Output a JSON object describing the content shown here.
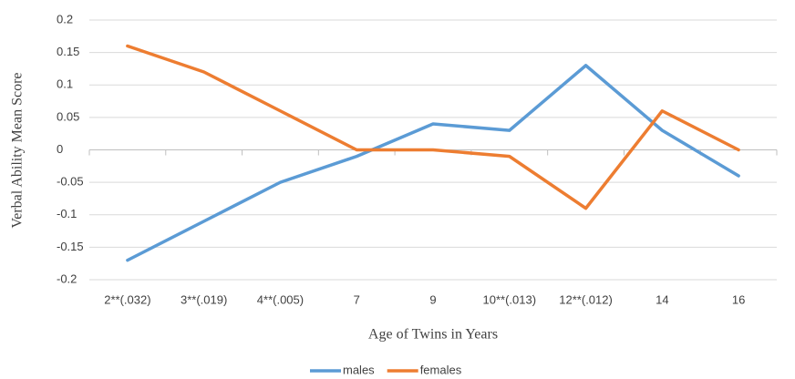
{
  "chart_data": {
    "type": "line",
    "x_label": "Age of Twins in Years",
    "y_label": "Verbal Ability Mean Score",
    "categories": [
      "2**(.032)",
      "3**(.019)",
      "4**(.005)",
      "7",
      "9",
      "10**(.013)",
      "12**(.012)",
      "14",
      "16"
    ],
    "series": [
      {
        "name": "males",
        "color": "#5b9bd5",
        "values": [
          -0.17,
          -0.11,
          -0.05,
          -0.01,
          0.04,
          0.03,
          0.13,
          0.03,
          -0.04
        ]
      },
      {
        "name": "females",
        "color": "#ed7d31",
        "values": [
          0.16,
          0.12,
          0.06,
          0,
          0,
          -0.01,
          -0.09,
          0.06,
          0
        ]
      }
    ],
    "ylim": [
      -0.2,
      0.2
    ],
    "yticks": [
      -0.2,
      -0.15,
      -0.1,
      -0.05,
      0,
      0.05,
      0.1,
      0.15,
      0.2
    ],
    "grid": true,
    "legend": "bottom"
  }
}
